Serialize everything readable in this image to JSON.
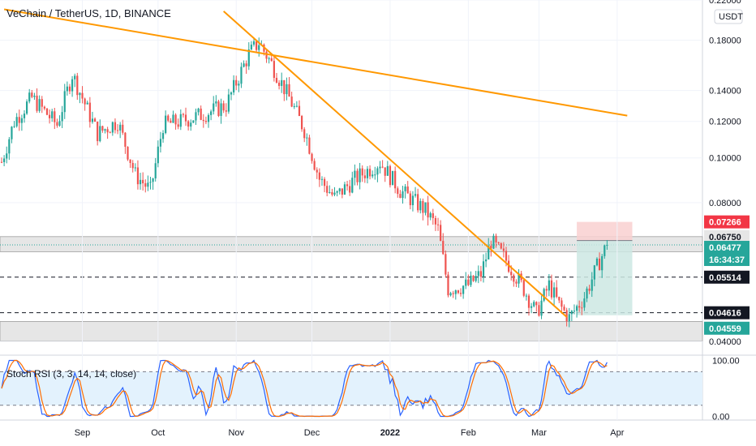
{
  "header": {
    "title": "VeChain / TetherUS, 1D, BINANCE"
  },
  "indicator": {
    "title": "Stoch RSI (3, 3, 14, 14, close)"
  },
  "colors": {
    "up": "#26a69a",
    "down": "#ef5350",
    "trend": "#ff9800",
    "stoch_k": "#2962ff",
    "stoch_d": "#ff6d00",
    "stoch_band": "#e3f2fd",
    "zone": "#e6e6e6",
    "tp_zone": "#cce8e3",
    "sl_zone": "#f9d0d0",
    "badge_red": "#f23645",
    "badge_green": "#26a69a",
    "badge_dark": "#131722"
  },
  "chart_data": [
    {
      "type": "candlestick",
      "title": "VeChain / TetherUS, 1D, BINANCE",
      "y_scale": "log",
      "ylim": [
        0.0375,
        0.22
      ],
      "y_ticks": [
        "0.04000",
        "0.08000",
        "0.10000",
        "0.12000",
        "0.14000",
        "0.18000",
        "0.22000"
      ],
      "x_ticks": [
        "Sep",
        "Oct",
        "Nov",
        "Dec",
        "2022",
        "Feb",
        "Mar",
        "Apr"
      ],
      "unit_label": "USDT",
      "price_badges": [
        {
          "label": "0.07266",
          "style": "red"
        },
        {
          "label": "0.06750",
          "style": "dark"
        },
        {
          "label": "0.06477",
          "style": "green"
        },
        {
          "label": "16:34:37",
          "style": "green"
        },
        {
          "label": "0.05514",
          "style": "dark"
        },
        {
          "label": "0.04616",
          "style": "dark"
        },
        {
          "label": "0.04559",
          "style": "green"
        }
      ],
      "levels": {
        "resistance_zone": [
          0.0626,
          0.0675
        ],
        "support_zone": [
          0.0401,
          0.0442
        ],
        "dashed_lines": [
          0.05514,
          0.04616
        ],
        "current_price": 0.06477,
        "position": {
          "entry": 0.0662,
          "target": 0.07266,
          "stop": 0.04559
        }
      },
      "trendlines": [
        {
          "from": [
            "2021-08-01",
            0.21
          ],
          "to": [
            "2022-04-05",
            0.1235
          ]
        },
        {
          "from": [
            "2021-10-27",
            0.208
          ],
          "to": [
            "2022-03-12",
            0.0452
          ]
        }
      ],
      "anchors": [
        {
          "date": "2021-07-31",
          "close": 0.098
        },
        {
          "date": "2021-08-05",
          "close": 0.12
        },
        {
          "date": "2021-08-12",
          "close": 0.135
        },
        {
          "date": "2021-08-22",
          "close": 0.118
        },
        {
          "date": "2021-08-28",
          "close": 0.152
        },
        {
          "date": "2021-09-07",
          "close": 0.113
        },
        {
          "date": "2021-09-15",
          "close": 0.12
        },
        {
          "date": "2021-09-22",
          "close": 0.092
        },
        {
          "date": "2021-09-28",
          "close": 0.085
        },
        {
          "date": "2021-10-03",
          "close": 0.118
        },
        {
          "date": "2021-10-10",
          "close": 0.12
        },
        {
          "date": "2021-10-20",
          "close": 0.125
        },
        {
          "date": "2021-10-28",
          "close": 0.13
        },
        {
          "date": "2021-11-06",
          "close": 0.168
        },
        {
          "date": "2021-11-10",
          "close": 0.178
        },
        {
          "date": "2021-11-15",
          "close": 0.16
        },
        {
          "date": "2021-11-22",
          "close": 0.135
        },
        {
          "date": "2021-11-28",
          "close": 0.115
        },
        {
          "date": "2021-12-04",
          "close": 0.09
        },
        {
          "date": "2021-12-10",
          "close": 0.082
        },
        {
          "date": "2021-12-18",
          "close": 0.09
        },
        {
          "date": "2021-12-28",
          "close": 0.098
        },
        {
          "date": "2022-01-05",
          "close": 0.085
        },
        {
          "date": "2022-01-15",
          "close": 0.077
        },
        {
          "date": "2022-01-20",
          "close": 0.07
        },
        {
          "date": "2022-01-24",
          "close": 0.052
        },
        {
          "date": "2022-02-01",
          "close": 0.053
        },
        {
          "date": "2022-02-06",
          "close": 0.056
        },
        {
          "date": "2022-02-10",
          "close": 0.066
        },
        {
          "date": "2022-02-16",
          "close": 0.06
        },
        {
          "date": "2022-02-23",
          "close": 0.052
        },
        {
          "date": "2022-02-28",
          "close": 0.046
        },
        {
          "date": "2022-03-05",
          "close": 0.053
        },
        {
          "date": "2022-03-09",
          "close": 0.048
        },
        {
          "date": "2022-03-13",
          "close": 0.045
        },
        {
          "date": "2022-03-19",
          "close": 0.05
        },
        {
          "date": "2022-03-24",
          "close": 0.058
        },
        {
          "date": "2022-03-28",
          "close": 0.065
        }
      ]
    },
    {
      "type": "line",
      "title": "Stoch RSI (3, 3, 14, 14, close)",
      "ylim": [
        -5,
        108
      ],
      "y_ticks": [
        "0.00",
        "100.00"
      ],
      "bands": [
        20,
        80
      ],
      "series": [
        {
          "name": "K",
          "color": "#2962ff"
        },
        {
          "name": "D",
          "color": "#ff6d00"
        }
      ]
    }
  ]
}
